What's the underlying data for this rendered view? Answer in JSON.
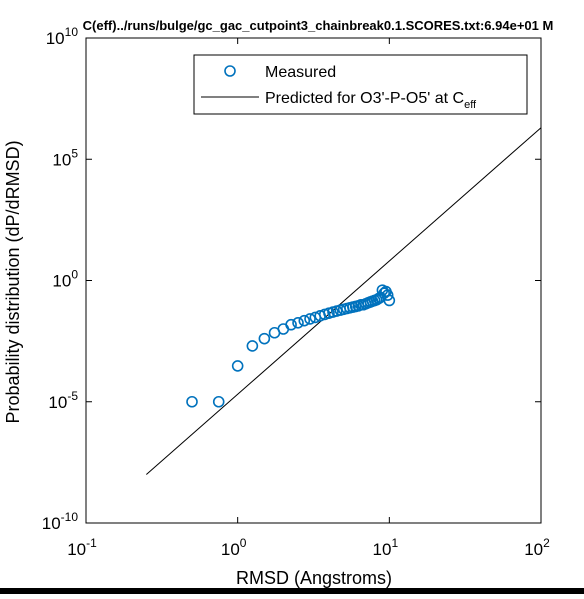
{
  "chart_data": {
    "type": "scatter",
    "title": "C(eff)../runs/bulge/gc_gac_cutpoint3_chainbreak0.1.SCORES.txt:6.94e+01 M",
    "xlabel": "RMSD (Angstroms)",
    "ylabel": "Probability distribution (dP/dRMSD)",
    "x_scale": "log",
    "y_scale": "log",
    "xlim": [
      0.1,
      100
    ],
    "ylim": [
      1e-10,
      10000000000.0
    ],
    "x_ticks": [
      {
        "value": 0.1,
        "base": "10",
        "exp": "-1"
      },
      {
        "value": 1,
        "base": "10",
        "exp": "0"
      },
      {
        "value": 10,
        "base": "10",
        "exp": "1"
      },
      {
        "value": 100,
        "base": "10",
        "exp": "2"
      }
    ],
    "y_ticks": [
      {
        "value": 1e-10,
        "base": "10",
        "exp": "-10"
      },
      {
        "value": 1e-05,
        "base": "10",
        "exp": "-5"
      },
      {
        "value": 1,
        "base": "10",
        "exp": "0"
      },
      {
        "value": 100000.0,
        "base": "10",
        "exp": "5"
      },
      {
        "value": 10000000000.0,
        "base": "10",
        "exp": "10"
      }
    ],
    "grid": false,
    "legend_position": "top-right",
    "legend": {
      "measured_label": "Measured",
      "predicted_label_main": "Predicted for O3'-P-O5' at C",
      "predicted_label_sub": "eff"
    },
    "colors": {
      "measured": "#0072bd",
      "predicted": "#000000"
    },
    "series": [
      {
        "name": "Measured",
        "style": "open-circle",
        "x": [
          0.5,
          0.75,
          1.0,
          1.25,
          1.5,
          1.75,
          2.0,
          2.25,
          2.5,
          2.75,
          3.0,
          3.25,
          3.5,
          3.75,
          4.0,
          4.25,
          4.5,
          4.75,
          5.0,
          5.25,
          5.5,
          5.75,
          6.0,
          6.25,
          6.5,
          6.75,
          7.0,
          7.25,
          7.5,
          7.75,
          8.0,
          8.25,
          8.5,
          8.75,
          9.0,
          9.25,
          9.5,
          9.75,
          10.0
        ],
        "y": [
          1e-05,
          1e-05,
          0.0003,
          0.002,
          0.004,
          0.007,
          0.01,
          0.015,
          0.018,
          0.022,
          0.026,
          0.03,
          0.035,
          0.04,
          0.045,
          0.05,
          0.055,
          0.06,
          0.065,
          0.07,
          0.075,
          0.08,
          0.085,
          0.09,
          0.1,
          0.1,
          0.11,
          0.12,
          0.13,
          0.14,
          0.15,
          0.16,
          0.18,
          0.2,
          0.4,
          0.3,
          0.35,
          0.25,
          0.15
        ]
      },
      {
        "name": "Predicted for O3'-P-O5' at Ceff",
        "style": "line",
        "x": [
          0.25,
          100
        ],
        "y": [
          1e-08,
          2000000
        ]
      }
    ]
  }
}
